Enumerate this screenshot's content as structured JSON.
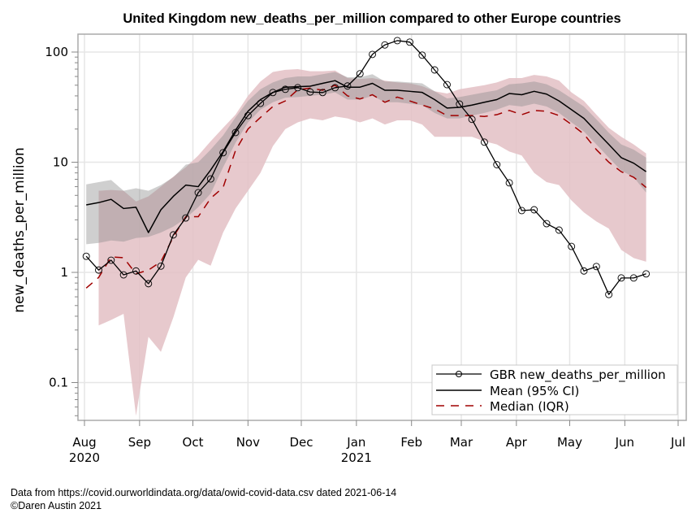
{
  "chart_data": {
    "type": "line",
    "title": "United Kingdom new_deaths_per_million compared to other Europe countries",
    "xlabel": "",
    "ylabel": "new_deaths_per_million",
    "yscale": "log",
    "ylim": [
      0.045,
      140
    ],
    "xlim": [
      "2020-07-30",
      "2021-07-05"
    ],
    "grid": true,
    "y_ticks": [
      {
        "value": 0.1,
        "label": "0.1"
      },
      {
        "value": 1,
        "label": "1"
      },
      {
        "value": 10,
        "label": "10"
      },
      {
        "value": 100,
        "label": "100"
      }
    ],
    "x_ticks": [
      {
        "date": "2020-08-01",
        "label": "Aug",
        "sublabel": "2020"
      },
      {
        "date": "2020-09-01",
        "label": "Sep",
        "sublabel": ""
      },
      {
        "date": "2020-10-01",
        "label": "Oct",
        "sublabel": ""
      },
      {
        "date": "2020-11-01",
        "label": "Nov",
        "sublabel": ""
      },
      {
        "date": "2020-12-01",
        "label": "Dec",
        "sublabel": ""
      },
      {
        "date": "2021-01-01",
        "label": "Jan",
        "sublabel": "2021"
      },
      {
        "date": "2021-02-01",
        "label": "Feb",
        "sublabel": ""
      },
      {
        "date": "2021-03-01",
        "label": "Mar",
        "sublabel": ""
      },
      {
        "date": "2021-04-01",
        "label": "Apr",
        "sublabel": ""
      },
      {
        "date": "2021-05-01",
        "label": "May",
        "sublabel": ""
      },
      {
        "date": "2021-06-01",
        "label": "Jun",
        "sublabel": ""
      },
      {
        "date": "2021-07-01",
        "label": "Jul",
        "sublabel": ""
      }
    ],
    "legend": {
      "position": "bottom-right",
      "entries": [
        {
          "label": "GBR new_deaths_per_million",
          "style": "solid-circle-markers",
          "color": "#000000"
        },
        {
          "label": "Mean (95% CI)",
          "style": "solid",
          "color": "#000000"
        },
        {
          "label": "Median (IQR)",
          "style": "dashed",
          "color": "#a00000"
        }
      ]
    },
    "colors": {
      "gbr": "#000000",
      "mean": "#000000",
      "median": "#a00000",
      "ci_band": "#b4b4b4",
      "iqr_band": "#e3c0c4",
      "grid": "#e6e6e6",
      "frame": "#aaaaaa"
    },
    "series": [
      {
        "name": "GBR new_deaths_per_million",
        "dates": [
          "2020-08-02",
          "2020-08-09",
          "2020-08-16",
          "2020-08-23",
          "2020-08-30",
          "2020-09-06",
          "2020-09-13",
          "2020-09-20",
          "2020-09-27",
          "2020-10-04",
          "2020-10-11",
          "2020-10-18",
          "2020-10-25",
          "2020-11-01",
          "2020-11-08",
          "2020-11-15",
          "2020-11-22",
          "2020-11-29",
          "2020-12-06",
          "2020-12-13",
          "2020-12-20",
          "2020-12-27",
          "2021-01-03",
          "2021-01-10",
          "2021-01-17",
          "2021-01-24",
          "2021-01-31",
          "2021-02-07",
          "2021-02-14",
          "2021-02-21",
          "2021-02-28",
          "2021-03-07",
          "2021-03-14",
          "2021-03-21",
          "2021-03-28",
          "2021-04-04",
          "2021-04-11",
          "2021-04-18",
          "2021-04-25",
          "2021-05-02",
          "2021-05-09",
          "2021-05-16",
          "2021-05-23",
          "2021-05-30",
          "2021-06-06",
          "2021-06-13"
        ],
        "values": [
          1.4,
          1.05,
          1.29,
          0.95,
          1.03,
          0.79,
          1.14,
          2.19,
          3.12,
          5.29,
          7.05,
          12.2,
          18.6,
          26.5,
          34.2,
          42.9,
          45.9,
          47.5,
          43.4,
          42.9,
          47.5,
          49.2,
          63.5,
          95.2,
          116,
          127,
          123,
          93.7,
          68.8,
          50.6,
          33.7,
          24.5,
          15.2,
          9.5,
          6.5,
          3.64,
          3.7,
          2.77,
          2.42,
          1.72,
          1.03,
          1.13,
          0.63,
          0.89,
          0.89,
          0.97
        ]
      },
      {
        "name": "Mean (95% CI)",
        "dates": [
          "2020-08-02",
          "2020-08-09",
          "2020-08-16",
          "2020-08-23",
          "2020-08-30",
          "2020-09-06",
          "2020-09-13",
          "2020-09-20",
          "2020-09-27",
          "2020-10-04",
          "2020-10-11",
          "2020-10-18",
          "2020-10-25",
          "2020-11-01",
          "2020-11-08",
          "2020-11-15",
          "2020-11-22",
          "2020-11-29",
          "2020-12-06",
          "2020-12-13",
          "2020-12-20",
          "2020-12-27",
          "2021-01-03",
          "2021-01-10",
          "2021-01-17",
          "2021-01-24",
          "2021-01-31",
          "2021-02-07",
          "2021-02-14",
          "2021-02-21",
          "2021-02-28",
          "2021-03-07",
          "2021-03-14",
          "2021-03-21",
          "2021-03-28",
          "2021-04-04",
          "2021-04-11",
          "2021-04-18",
          "2021-04-25",
          "2021-05-02",
          "2021-05-09",
          "2021-05-16",
          "2021-05-23",
          "2021-05-30",
          "2021-06-06",
          "2021-06-13"
        ],
        "values": [
          4.1,
          4.3,
          4.6,
          3.8,
          3.9,
          2.3,
          3.7,
          4.9,
          6.2,
          6.0,
          8.5,
          12.5,
          19.5,
          29.0,
          37.0,
          43.0,
          48.0,
          48.5,
          49.0,
          52.0,
          55.0,
          48.0,
          48.0,
          52.0,
          45.0,
          45.0,
          44.0,
          43.0,
          37.0,
          31.0,
          31.5,
          33.0,
          35.0,
          37.0,
          42.0,
          41.0,
          44.0,
          41.5,
          36.0,
          30.0,
          25.0,
          19.0,
          14.5,
          11.0,
          9.8,
          8.2
        ],
        "ci_lower": [
          1.8,
          1.85,
          1.95,
          1.9,
          2.05,
          2.1,
          2.3,
          2.6,
          3.1,
          3.9,
          5.2,
          9.0,
          15.0,
          23.0,
          30.0,
          35.0,
          38.5,
          39.0,
          40.0,
          41.0,
          43.0,
          37.0,
          37.0,
          40.0,
          35.0,
          35.0,
          34.0,
          33.0,
          28.0,
          25.0,
          25.0,
          26.5,
          28.0,
          30.0,
          33.0,
          32.0,
          34.0,
          32.0,
          28.0,
          23.0,
          19.0,
          14.5,
          11.0,
          8.4,
          7.3,
          5.3
        ],
        "ci_upper": [
          6.3,
          6.6,
          6.9,
          5.5,
          5.8,
          5.5,
          6.2,
          7.3,
          9.5,
          10.0,
          13.0,
          17.5,
          25.5,
          36.0,
          46.0,
          53.0,
          58.0,
          60.0,
          60.0,
          63.0,
          66.0,
          59.0,
          59.0,
          63.0,
          54.0,
          54.0,
          53.0,
          52.0,
          44.0,
          38.0,
          39.0,
          41.0,
          43.0,
          45.0,
          51.0,
          52.0,
          54.0,
          51.0,
          45.0,
          38.0,
          32.0,
          24.5,
          18.5,
          14.5,
          13.0,
          11.0
        ]
      },
      {
        "name": "Median (IQR)",
        "dates": [
          "2020-08-02",
          "2020-08-09",
          "2020-08-16",
          "2020-08-23",
          "2020-08-30",
          "2020-09-06",
          "2020-09-13",
          "2020-09-20",
          "2020-09-27",
          "2020-10-04",
          "2020-10-11",
          "2020-10-18",
          "2020-10-25",
          "2020-11-01",
          "2020-11-08",
          "2020-11-15",
          "2020-11-22",
          "2020-11-29",
          "2020-12-06",
          "2020-12-13",
          "2020-12-20",
          "2020-12-27",
          "2021-01-03",
          "2021-01-10",
          "2021-01-17",
          "2021-01-24",
          "2021-01-31",
          "2021-02-07",
          "2021-02-14",
          "2021-02-21",
          "2021-02-28",
          "2021-03-07",
          "2021-03-14",
          "2021-03-21",
          "2021-03-28",
          "2021-04-04",
          "2021-04-11",
          "2021-04-18",
          "2021-04-25",
          "2021-05-02",
          "2021-05-09",
          "2021-05-16",
          "2021-05-23",
          "2021-05-30",
          "2021-06-06",
          "2021-06-13"
        ],
        "values": [
          0.72,
          0.9,
          1.38,
          1.36,
          0.97,
          1.05,
          1.25,
          2.1,
          3.2,
          3.2,
          4.7,
          5.9,
          12.8,
          20.0,
          25.5,
          32.0,
          36.0,
          45.5,
          47.0,
          45.0,
          50.0,
          40.0,
          37.5,
          41.0,
          35.0,
          39.0,
          36.0,
          33.0,
          30.5,
          26.5,
          26.5,
          26.5,
          26.0,
          27.0,
          29.5,
          27.0,
          29.5,
          29.0,
          26.5,
          22.0,
          18.0,
          13.0,
          10.0,
          8.2,
          7.3,
          5.9
        ],
        "iqr_lower": [
          null,
          0.33,
          0.37,
          0.42,
          0.05,
          0.26,
          0.19,
          0.39,
          0.9,
          1.3,
          1.15,
          2.3,
          3.8,
          5.5,
          8.0,
          14.0,
          20.0,
          23.0,
          25.0,
          24.0,
          26.0,
          25.0,
          23.0,
          25.0,
          22.0,
          24.0,
          24.0,
          22.0,
          17.0,
          17.0,
          17.0,
          17.0,
          15.5,
          14.5,
          12.5,
          11.5,
          8.0,
          6.6,
          6.2,
          4.5,
          3.5,
          2.9,
          2.5,
          1.6,
          1.35,
          1.25
        ],
        "iqr_upper": [
          null,
          5.5,
          5.6,
          5.5,
          4.4,
          4.9,
          6.0,
          7.4,
          9.0,
          11.5,
          15.5,
          20.5,
          27.0,
          40.0,
          54.0,
          66.0,
          69.0,
          70.0,
          67.0,
          67.0,
          68.0,
          58.0,
          57.0,
          58.0,
          55.0,
          53.0,
          52.0,
          49.0,
          44.0,
          42.0,
          46.0,
          48.0,
          50.0,
          53.0,
          58.0,
          58.0,
          62.0,
          60.0,
          55.0,
          43.0,
          36.0,
          27.0,
          20.5,
          17.0,
          14.5,
          12.0
        ]
      }
    ]
  },
  "footnotes": {
    "source": "Data from https://covid.ourworldindata.org/data/owid-covid-data.csv dated 2021-06-14",
    "copyright": "©Daren Austin 2021"
  }
}
